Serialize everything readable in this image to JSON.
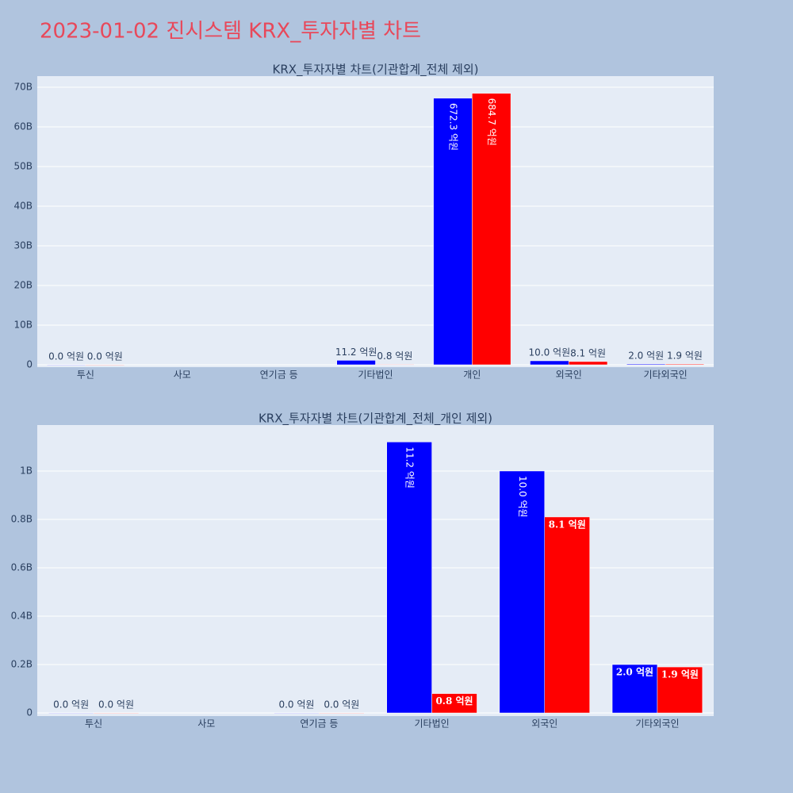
{
  "title": "2023-01-02 진시스템 KRX_투자자별 차트",
  "chart_data": [
    {
      "type": "bar",
      "title": "KRX_투자자별 차트(기관합계_전체 제외)",
      "categories": [
        "투신",
        "사모",
        "연기금 등",
        "기타법인",
        "개인",
        "외국인",
        "기타외국인"
      ],
      "series": [
        {
          "color": "#0000ff",
          "values": [
            0,
            null,
            null,
            1.12,
            67.23,
            1.0,
            0.2
          ],
          "value_labels": [
            "0.0 억원",
            null,
            null,
            "11.2 억원",
            "672.3 억원",
            "10.0 억원",
            "2.0 억원"
          ]
        },
        {
          "color": "#ff0000",
          "values": [
            0,
            null,
            null,
            0.08,
            68.47,
            0.81,
            0.19
          ],
          "value_labels": [
            "0.0 억원",
            null,
            null,
            "0.8 억원",
            "684.7 억원",
            "8.1 억원",
            "1.9 억원"
          ]
        }
      ],
      "ylim": [
        -0.6,
        72.8
      ],
      "yticks": [
        0,
        {
          "value": 10,
          "label": "10B"
        },
        {
          "value": 20,
          "label": "20B"
        },
        {
          "value": 30,
          "label": "30B"
        },
        {
          "value": 40,
          "label": "40B"
        },
        {
          "value": 50,
          "label": "50B"
        },
        {
          "value": 60,
          "label": "60B"
        },
        {
          "value": 70,
          "label": "70B"
        }
      ],
      "grid": true
    },
    {
      "type": "bar",
      "title": "KRX_투자자별 차트(기관합계_전체_개인 제외)",
      "categories": [
        "투신",
        "사모",
        "연기금 등",
        "기타법인",
        "외국인",
        "기타외국인"
      ],
      "series": [
        {
          "color": "#0000ff",
          "values": [
            0,
            null,
            0,
            1.12,
            1.0,
            0.2
          ],
          "value_labels": [
            "0.0 억원",
            null,
            "0.0 억원",
            "11.2 억원",
            "10.0 억원",
            "2.0 억원"
          ]
        },
        {
          "color": "#ff0000",
          "values": [
            0,
            null,
            0,
            0.08,
            0.81,
            0.19
          ],
          "value_labels": [
            "0.0 억원",
            null,
            "0.0 억원",
            "0.8 억원",
            "8.1 억원",
            "1.9 억원"
          ]
        }
      ],
      "ylim": [
        -0.013,
        1.19
      ],
      "yticks": [
        0,
        {
          "value": 0.2,
          "label": "0.2B"
        },
        {
          "value": 0.4,
          "label": "0.4B"
        },
        {
          "value": 0.6,
          "label": "0.6B"
        },
        {
          "value": 0.8,
          "label": "0.8B"
        },
        {
          "value": 1,
          "label": "1B"
        }
      ],
      "grid": true
    }
  ]
}
